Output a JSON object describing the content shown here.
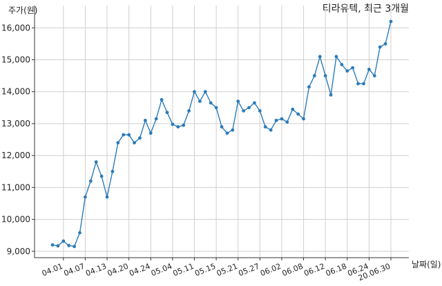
{
  "chart_data": {
    "type": "line",
    "title": "티라유텍, 최근 3개월",
    "ylabel": "주가(원)",
    "xlabel": "날짜(일)",
    "ylim": [
      8800,
      16700
    ],
    "yticks": [
      9000,
      10000,
      11000,
      12000,
      13000,
      14000,
      15000,
      16000
    ],
    "ytick_labels": [
      "9,000",
      "10,000",
      "11,000",
      "12,000",
      "13,000",
      "14,000",
      "15,000",
      "16,000"
    ],
    "x_tick_labels": [
      "04.01",
      "04.07",
      "04.13",
      "04.20",
      "04.24",
      "05.04",
      "05.11",
      "05.15",
      "05.21",
      "05.27",
      "06.02",
      "06.08",
      "06.12",
      "06.18",
      "06.24",
      "20.06.30"
    ],
    "grid": true,
    "colors": {
      "line": "#2b7bb9",
      "grid": "#cfcfcf"
    },
    "x": [
      "03.30",
      "03.31",
      "04.01",
      "04.02",
      "04.03",
      "04.06",
      "04.07",
      "04.08",
      "04.09",
      "04.10",
      "04.13",
      "04.14",
      "04.16",
      "04.17",
      "04.20",
      "04.21",
      "04.22",
      "04.23",
      "04.24",
      "04.27",
      "04.28",
      "04.29",
      "05.04",
      "05.06",
      "05.07",
      "05.08",
      "05.11",
      "05.12",
      "05.13",
      "05.14",
      "05.15",
      "05.18",
      "05.19",
      "05.20",
      "05.21",
      "05.22",
      "05.25",
      "05.26",
      "05.27",
      "05.28",
      "05.29",
      "06.01",
      "06.02",
      "06.03",
      "06.04",
      "06.05",
      "06.08",
      "06.09",
      "06.10",
      "06.11",
      "06.12",
      "06.15",
      "06.16",
      "06.17",
      "06.18",
      "06.19",
      "06.22",
      "06.23",
      "06.24",
      "06.25",
      "06.26",
      "06.29",
      "06.30"
    ],
    "series": [
      {
        "values": [
          9200,
          9170,
          9320,
          9180,
          9150,
          9580,
          10700,
          11200,
          11800,
          11350,
          10700,
          11500,
          12400,
          12650,
          12650,
          12400,
          12550,
          13100,
          12700,
          13150,
          13750,
          13350,
          12980,
          12900,
          12950,
          13400,
          14000,
          13700,
          14000,
          13650,
          13500,
          12900,
          12700,
          12800,
          13700,
          13400,
          13500,
          13650,
          13400,
          12900,
          12800,
          13100,
          13150,
          13050,
          13450,
          13300,
          13150,
          14150,
          14500,
          15100,
          14500,
          13900,
          15100,
          14850,
          14650,
          14750,
          14250,
          14250,
          14700,
          14500,
          15400,
          15500,
          16200
        ]
      }
    ]
  }
}
